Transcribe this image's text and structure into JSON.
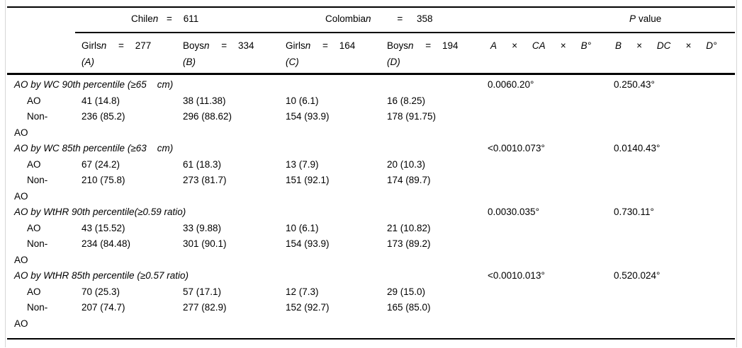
{
  "table": {
    "header": {
      "chile": {
        "country": "Chile",
        "n": "n",
        "eq": "=",
        "value": "611"
      },
      "colombia": {
        "country": "Colombia",
        "n": "n",
        "eq": "=",
        "value": "358"
      },
      "p_value": {
        "p": "P",
        "label": "value"
      },
      "subcols": [
        {
          "group": "Girls",
          "n": "n",
          "eq": "=",
          "value": "277",
          "letter": "(A)"
        },
        {
          "group": "Boys",
          "n": "n",
          "eq": "=",
          "value": "334",
          "letter": "(B)"
        },
        {
          "group": "Girls",
          "n": "n",
          "eq": "=",
          "value": "164",
          "letter": "(C)"
        },
        {
          "group": "Boys",
          "n": "n",
          "eq": "=",
          "value": "194",
          "letter": "(D)"
        }
      ],
      "p_contrasts_1": {
        "t0": "A",
        "t1": "×",
        "t2": "CA",
        "t3": "×",
        "t4": "B°"
      },
      "p_contrasts_2": {
        "t0": "B",
        "t1": "×",
        "t2": "DC",
        "t3": "×",
        "t4": "D°"
      }
    },
    "sections": [
      {
        "title": "AO by WC 90th percentile (≥65    cm)",
        "p1": "0.0060.20°",
        "p2": "0.250.43°",
        "rows": [
          {
            "label": "AO",
            "a": "41 (14.8)",
            "b": "38 (11.38)",
            "c": "10 (6.1)",
            "d": "16 (8.25)"
          },
          {
            "label": "Non-AO",
            "a": "236 (85.2)",
            "b": "296 (88.62)",
            "c": "154 (93.9)",
            "d": "178 (91.75)"
          }
        ]
      },
      {
        "title": "AO by WC 85th percentile (≥63    cm)",
        "p1": "<0.0010.073°",
        "p2": "0.0140.43°",
        "rows": [
          {
            "label": "AO",
            "a": "67 (24.2)",
            "b": "61 (18.3)",
            "c": "13 (7.9)",
            "d": "20 (10.3)"
          },
          {
            "label": "Non-AO",
            "a": "210 (75.8)",
            "b": "273 (81.7)",
            "c": "151 (92.1)",
            "d": "174 (89.7)"
          }
        ]
      },
      {
        "title": "AO by WtHR 90th percentile(≥0.59 ratio)",
        "p1": "0.0030.035°",
        "p2": "0.730.11°",
        "rows": [
          {
            "label": "AO",
            "a": "43 (15.52)",
            "b": "33 (9.88)",
            "c": "10 (6.1)",
            "d": "21 (10.82)"
          },
          {
            "label": "Non-AO",
            "a": "234 (84.48)",
            "b": "301 (90.1)",
            "c": "154 (93.9)",
            "d": "173 (89.2)"
          }
        ]
      },
      {
        "title": "AO by WtHR 85th percentile (≥0.57 ratio)",
        "p1": "<0.0010.013°",
        "p2": "0.520.024°",
        "rows": [
          {
            "label": "AO",
            "a": "70 (25.3)",
            "b": "57 (17.1)",
            "c": "12 (7.3)",
            "d": "29 (15.0)"
          },
          {
            "label": "Non-AO",
            "a": "207 (74.7)",
            "b": "277 (82.9)",
            "c": "152 (92.7)",
            "d": "165 (85.0)"
          }
        ]
      }
    ]
  }
}
